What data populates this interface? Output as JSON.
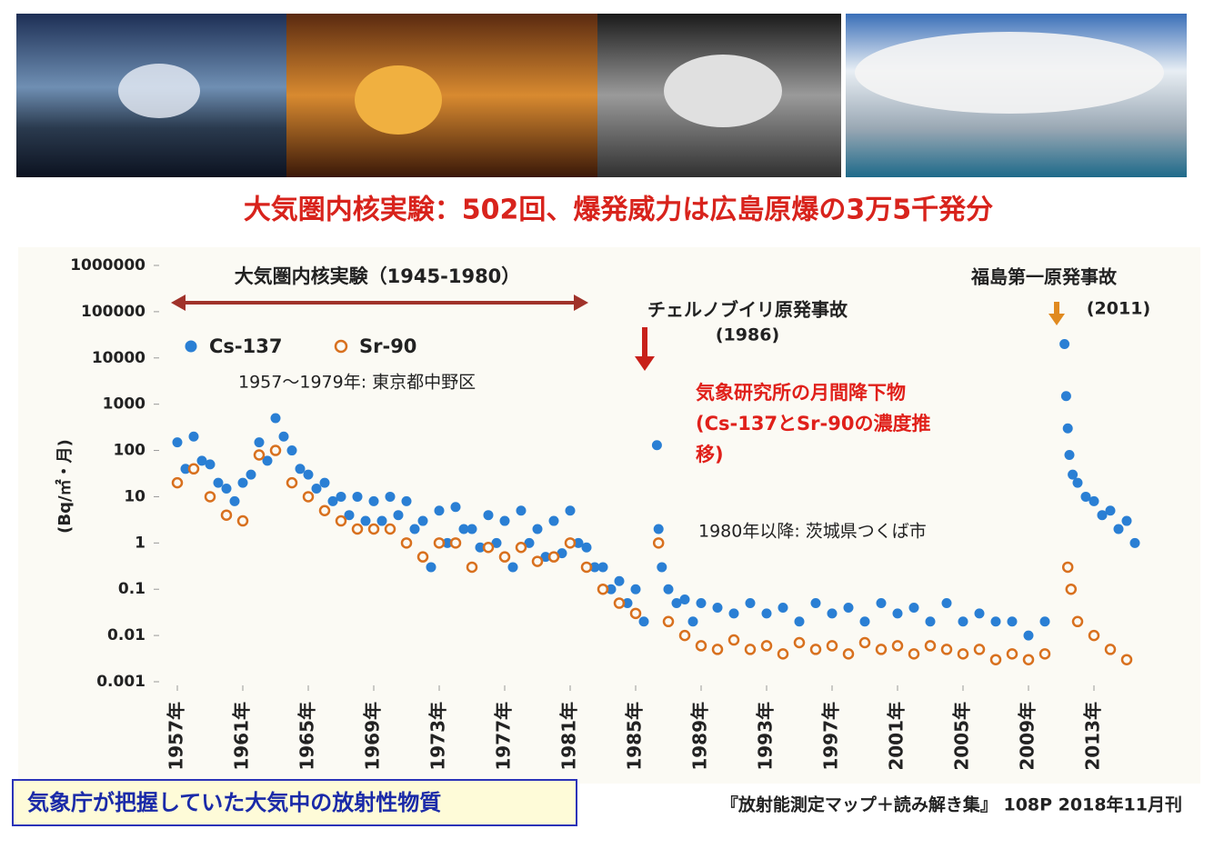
{
  "chart_data": {
    "type": "scatter",
    "title": "大気圏内核実験：502回、爆発威力は広島原爆の3万5千発分",
    "y_label": "(Bq/㎡・月)",
    "log_y": true,
    "ylim": [
      0.001,
      1000000
    ],
    "yticks": [
      0.001,
      0.01,
      0.1,
      1,
      10,
      100,
      1000,
      10000,
      100000,
      1000000
    ],
    "xlim": [
      1956,
      2017.5
    ],
    "xticks": [
      {
        "value": 1957,
        "label": "1957年"
      },
      {
        "value": 1961,
        "label": "1961年"
      },
      {
        "value": 1965,
        "label": "1965年"
      },
      {
        "value": 1969,
        "label": "1969年"
      },
      {
        "value": 1973,
        "label": "1973年"
      },
      {
        "value": 1977,
        "label": "1977年"
      },
      {
        "value": 1981,
        "label": "1981年"
      },
      {
        "value": 1985,
        "label": "1985年"
      },
      {
        "value": 1989,
        "label": "1989年"
      },
      {
        "value": 1993,
        "label": "1993年"
      },
      {
        "value": 1997,
        "label": "1997年"
      },
      {
        "value": 2001,
        "label": "2001年"
      },
      {
        "value": 2005,
        "label": "2005年"
      },
      {
        "value": 2009,
        "label": "2009年"
      },
      {
        "value": 2013,
        "label": "2013年"
      }
    ],
    "series": [
      {
        "name": "Cs-137",
        "color": "#2a7fd4",
        "marker": "filled",
        "x": [
          1957,
          1957.5,
          1958,
          1958.5,
          1959,
          1959.5,
          1960,
          1960.5,
          1961,
          1961.5,
          1962,
          1962.5,
          1963,
          1963.5,
          1964,
          1964.5,
          1965,
          1965.5,
          1966,
          1966.5,
          1967,
          1967.5,
          1968,
          1968.5,
          1969,
          1969.5,
          1970,
          1970.5,
          1971,
          1971.5,
          1972,
          1972.5,
          1973,
          1973.5,
          1974,
          1974.5,
          1975,
          1975.5,
          1976,
          1976.5,
          1977,
          1977.5,
          1978,
          1978.5,
          1979,
          1979.5,
          1980,
          1980.5,
          1981,
          1981.5,
          1982,
          1982.5,
          1983,
          1983.5,
          1984,
          1984.5,
          1985,
          1985.5,
          1986.3,
          1986.4,
          1986.6,
          1987,
          1987.5,
          1988,
          1988.5,
          1989,
          1990,
          1991,
          1992,
          1993,
          1994,
          1995,
          1996,
          1997,
          1998,
          1999,
          2000,
          2001,
          2002,
          2003,
          2004,
          2005,
          2006,
          2007,
          2008,
          2009,
          2010,
          2011.2,
          2011.3,
          2011.4,
          2011.5,
          2011.7,
          2012,
          2012.5,
          2013,
          2013.5,
          2014,
          2014.5,
          2015,
          2015.5
        ],
        "values": [
          150,
          40,
          200,
          60,
          50,
          20,
          15,
          8,
          20,
          30,
          150,
          60,
          500,
          200,
          100,
          40,
          30,
          15,
          20,
          8,
          10,
          4,
          10,
          3,
          8,
          3,
          10,
          4,
          8,
          2,
          3,
          0.3,
          5,
          1,
          6,
          2,
          2,
          0.8,
          4,
          1,
          3,
          0.3,
          5,
          1,
          2,
          0.5,
          3,
          0.6,
          5,
          1,
          0.8,
          0.3,
          0.3,
          0.1,
          0.15,
          0.05,
          0.1,
          0.02,
          130,
          2,
          0.3,
          0.1,
          0.05,
          0.06,
          0.02,
          0.05,
          0.04,
          0.03,
          0.05,
          0.03,
          0.04,
          0.02,
          0.05,
          0.03,
          0.04,
          0.02,
          0.05,
          0.03,
          0.04,
          0.02,
          0.05,
          0.02,
          0.03,
          0.02,
          0.02,
          0.01,
          0.02,
          20000,
          1500,
          300,
          80,
          30,
          20,
          10,
          8,
          4,
          5,
          2,
          3,
          1
        ]
      },
      {
        "name": "Sr-90",
        "color": "#d8701e",
        "marker": "hollow",
        "x": [
          1957,
          1958,
          1959,
          1960,
          1961,
          1962,
          1963,
          1964,
          1965,
          1966,
          1967,
          1968,
          1969,
          1970,
          1971,
          1972,
          1973,
          1974,
          1975,
          1976,
          1977,
          1978,
          1979,
          1980,
          1981,
          1982,
          1983,
          1984,
          1985,
          1986.4,
          1987,
          1988,
          1989,
          1990,
          1991,
          1992,
          1993,
          1994,
          1995,
          1996,
          1997,
          1998,
          1999,
          2000,
          2001,
          2002,
          2003,
          2004,
          2005,
          2006,
          2007,
          2008,
          2009,
          2010,
          2011.4,
          2011.6,
          2012,
          2013,
          2014,
          2015
        ],
        "values": [
          20,
          40,
          10,
          4,
          3,
          80,
          100,
          20,
          10,
          5,
          3,
          2,
          2,
          2,
          1,
          0.5,
          1,
          1,
          0.3,
          0.8,
          0.5,
          0.8,
          0.4,
          0.5,
          1,
          0.3,
          0.1,
          0.05,
          0.03,
          1,
          0.02,
          0.01,
          0.006,
          0.005,
          0.008,
          0.005,
          0.006,
          0.004,
          0.007,
          0.005,
          0.006,
          0.004,
          0.007,
          0.005,
          0.006,
          0.004,
          0.006,
          0.005,
          0.004,
          0.005,
          0.003,
          0.004,
          0.003,
          0.004,
          0.3,
          0.1,
          0.02,
          0.01,
          0.005,
          0.003
        ]
      }
    ],
    "annotations": {
      "tests": "大気圏内核実験（1945-1980）",
      "chernobyl": "チェルノブイリ原発事故",
      "chernobyl_year": "(1986)",
      "fukushima": "福島第一原発事故",
      "fukushima_year": "(2011)",
      "site1": "1957〜1979年: 東京都中野区",
      "site2": "1980年以降: 茨城県つくば市",
      "note": [
        "気象研究所の月間降下物",
        "(Cs-137とSr-90の濃度推",
        "移)"
      ]
    },
    "footer": "気象庁が把握していた大気中の放射性物質",
    "source": "『放射能測定マップ＋読み解き集』 108P 2018年11月刊"
  }
}
